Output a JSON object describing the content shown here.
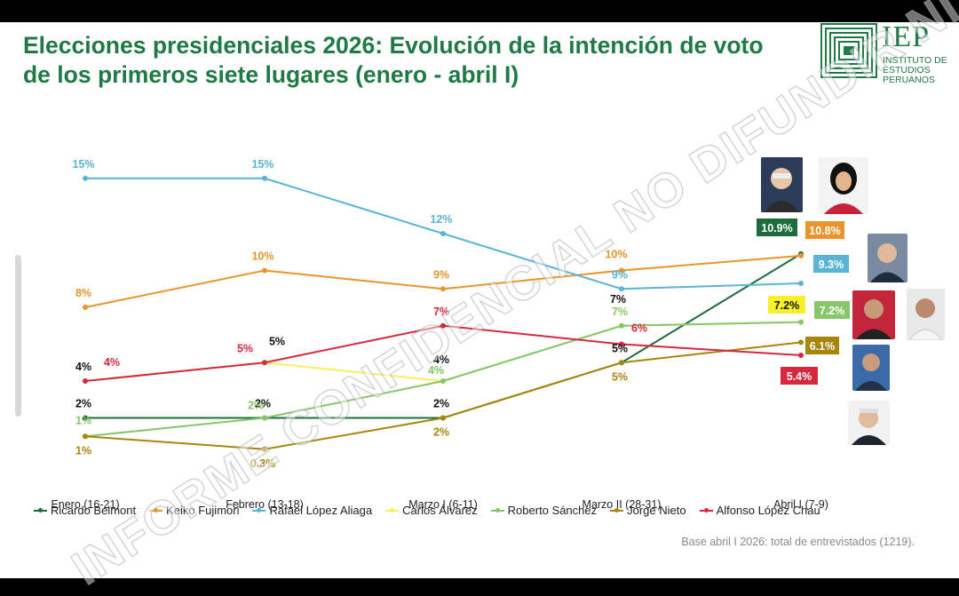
{
  "title": "Elecciones presidenciales 2026: Evolución de la intención de voto de los primeros siete lugares (enero - abril I)",
  "logo": {
    "name": "IEP",
    "lines": [
      "INSTITUTO DE",
      "ESTUDIOS",
      "PERUANOS"
    ]
  },
  "watermark": "INFORME CONFIDENCIAL NO DIFUNDIR NI PUBLICAR",
  "base_note": "Base abril I 2026: total de entrevistados (1219).",
  "chart_data": {
    "type": "line",
    "x": [
      "Enero (16-21)",
      "Febrero (13-18)",
      "Marzo I (6-11)",
      "Marzo II (28-31)",
      "Abril I (7-9)"
    ],
    "ylim": [
      0,
      16
    ],
    "grid": false,
    "legend": "bottom",
    "series": [
      {
        "name": "Ricardo Belmont",
        "color": "#1b6e3b",
        "values": [
          2,
          2,
          2,
          5,
          10.9
        ],
        "labels": [
          "2%",
          "2%",
          "2%",
          "5%",
          "10.9%"
        ]
      },
      {
        "name": "Keiko Fujimori",
        "color": "#e8952b",
        "values": [
          8,
          10,
          9,
          10,
          10.8
        ],
        "labels": [
          "8%",
          "10%",
          "9%",
          "10%",
          "10.8%"
        ]
      },
      {
        "name": "Rafael López Aliaga",
        "color": "#5ab4d6",
        "values": [
          15,
          15,
          12,
          9,
          9.3
        ],
        "labels": [
          "15%",
          "15%",
          "12%",
          "9%",
          "9.3%"
        ]
      },
      {
        "name": "Carlos Álvarez",
        "color": "#f7ef5b",
        "values": [
          4,
          5,
          4,
          7,
          7.2
        ],
        "labels": [
          "4%",
          "5%",
          "4%",
          "7%",
          "7.2%"
        ]
      },
      {
        "name": "Roberto Sánchez",
        "color": "#86c76b",
        "values": [
          1,
          2,
          4,
          7,
          7.2
        ],
        "labels": [
          "1%",
          "2%",
          "4%",
          "7%",
          "7.2%"
        ]
      },
      {
        "name": "Jorge Nieto",
        "color": "#a8860e",
        "values": [
          1,
          0.3,
          2,
          5,
          6.1
        ],
        "labels": [
          "1%",
          "0.3%",
          "2%",
          "5%",
          "6.1%"
        ]
      },
      {
        "name": "Alfonso López Chau",
        "color": "#d6293e",
        "values": [
          4,
          5,
          7,
          6,
          5.4
        ],
        "labels": [
          "4%",
          "5%",
          "7%",
          "6%",
          "5.4%"
        ]
      }
    ]
  }
}
